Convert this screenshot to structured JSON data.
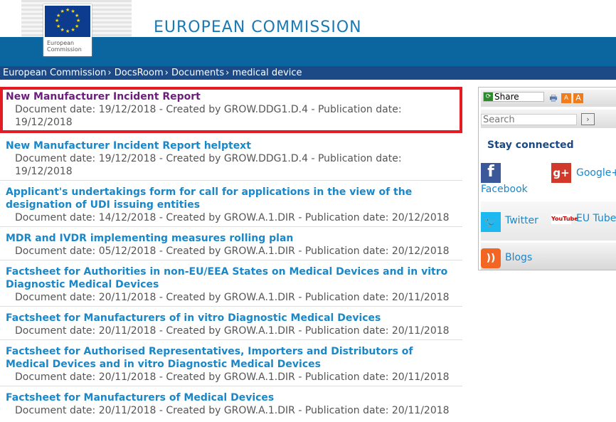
{
  "header": {
    "site_title": "EUROPEAN COMMISSION",
    "logo_text": "European Commission"
  },
  "breadcrumb": [
    "European Commission",
    "DocsRoom",
    "Documents",
    "medical device"
  ],
  "documents": [
    {
      "title": "New Manufacturer Incident Report",
      "meta": "Document date: 19/12/2018 - Created by GROW.DDG1.D.4 - Publication date: 19/12/2018",
      "selected": true
    },
    {
      "title": "New Manufacturer Incident Report helptext",
      "meta": "Document date: 19/12/2018 - Created by GROW.DDG1.D.4 - Publication date: 19/12/2018"
    },
    {
      "title": "Applicant's undertakings form for call for applications in the view of the designation of UDI issuing entities",
      "meta": "Document date: 14/12/2018 - Created by GROW.A.1.DIR - Publication date: 20/12/2018"
    },
    {
      "title": "MDR and IVDR implementing measures rolling plan",
      "meta": "Document date: 05/12/2018 - Created by GROW.A.1.DIR - Publication date: 20/12/2018"
    },
    {
      "title": "Factsheet for Authorities in non-EU/EEA States on Medical Devices and in vitro Diagnostic Medical Devices",
      "meta": "Document date: 20/11/2018 - Created by GROW.A.1.DIR - Publication date: 20/11/2018"
    },
    {
      "title": "Factsheet for Manufacturers of in vitro Diagnostic Medical Devices",
      "meta": "Document date: 20/11/2018 - Created by GROW.A.1.DIR - Publication date: 20/11/2018"
    },
    {
      "title": "Factsheet for Authorised Representatives, Importers and Distributors of Medical Devices and in vitro Diagnostic Medical Devices",
      "meta": "Document date: 20/11/2018 - Created by GROW.A.1.DIR - Publication date: 20/11/2018"
    },
    {
      "title": "Factsheet for Manufacturers of Medical Devices",
      "meta": "Document date: 20/11/2018 - Created by GROW.A.1.DIR - Publication date: 20/11/2018"
    }
  ],
  "sidebar": {
    "share": "Share",
    "search_placeholder": "Search",
    "stay_connected": "Stay connected",
    "social": {
      "facebook": "Facebook",
      "google": "Google+",
      "twitter": "Twitter",
      "eutube": "EU Tube",
      "blogs": "Blogs"
    }
  },
  "colors": {
    "band": "#0b66a0",
    "breadcrumb": "#1b4a86",
    "link": "#1a87c9",
    "visited": "#6b1f7b",
    "highlight": "#e31b23"
  }
}
